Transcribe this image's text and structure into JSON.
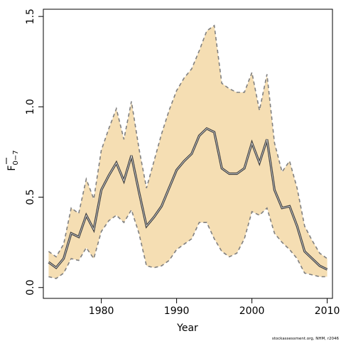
{
  "chart_data": {
    "type": "area",
    "xlabel": "Year",
    "ylabel": {
      "main": "F",
      "sub": "0−7"
    },
    "credit": "stockassessment.org, NHM, r2046",
    "xlim": [
      1972.3,
      2010.7
    ],
    "ylim": [
      -0.06,
      1.54
    ],
    "x_ticks": [
      1980,
      1990,
      2000,
      2010
    ],
    "x_tick_labels": [
      "1980",
      "1990",
      "2000",
      "2010"
    ],
    "y_ticks": [
      0.0,
      0.5,
      1.0,
      1.5
    ],
    "y_tick_labels": [
      "0.0",
      "0.5",
      "1.0",
      "1.5"
    ],
    "band_color": "#f5deb3",
    "line_color": "#404040",
    "bound_color": "#808080",
    "x": [
      1973,
      1974,
      1975,
      1976,
      1977,
      1978,
      1979,
      1980,
      1981,
      1982,
      1983,
      1984,
      1985,
      1986,
      1987,
      1988,
      1989,
      1990,
      1991,
      1992,
      1993,
      1994,
      1995,
      1996,
      1997,
      1998,
      1999,
      2000,
      2001,
      2002,
      2003,
      2004,
      2005,
      2006,
      2007,
      2008,
      2009,
      2010
    ],
    "series": [
      {
        "role": "estimate",
        "values": [
          0.14,
          0.11,
          0.16,
          0.3,
          0.28,
          0.4,
          0.32,
          0.54,
          0.62,
          0.69,
          0.59,
          0.73,
          0.53,
          0.34,
          0.39,
          0.45,
          0.55,
          0.65,
          0.7,
          0.74,
          0.84,
          0.88,
          0.86,
          0.66,
          0.63,
          0.63,
          0.66,
          0.8,
          0.69,
          0.82,
          0.54,
          0.44,
          0.45,
          0.34,
          0.2,
          0.16,
          0.12,
          0.1
        ]
      },
      {
        "role": "upper",
        "values": [
          0.2,
          0.17,
          0.24,
          0.44,
          0.41,
          0.6,
          0.49,
          0.76,
          0.88,
          0.99,
          0.82,
          1.03,
          0.77,
          0.55,
          0.7,
          0.85,
          0.98,
          1.09,
          1.16,
          1.21,
          1.31,
          1.42,
          1.45,
          1.13,
          1.1,
          1.08,
          1.08,
          1.19,
          0.98,
          1.18,
          0.8,
          0.64,
          0.7,
          0.55,
          0.34,
          0.26,
          0.19,
          0.16
        ]
      },
      {
        "role": "lower",
        "values": [
          0.06,
          0.05,
          0.08,
          0.16,
          0.15,
          0.22,
          0.16,
          0.31,
          0.37,
          0.4,
          0.36,
          0.43,
          0.3,
          0.12,
          0.11,
          0.12,
          0.15,
          0.21,
          0.24,
          0.27,
          0.36,
          0.36,
          0.27,
          0.2,
          0.17,
          0.19,
          0.27,
          0.42,
          0.4,
          0.44,
          0.3,
          0.25,
          0.21,
          0.16,
          0.08,
          0.07,
          0.06,
          0.06
        ]
      }
    ]
  }
}
